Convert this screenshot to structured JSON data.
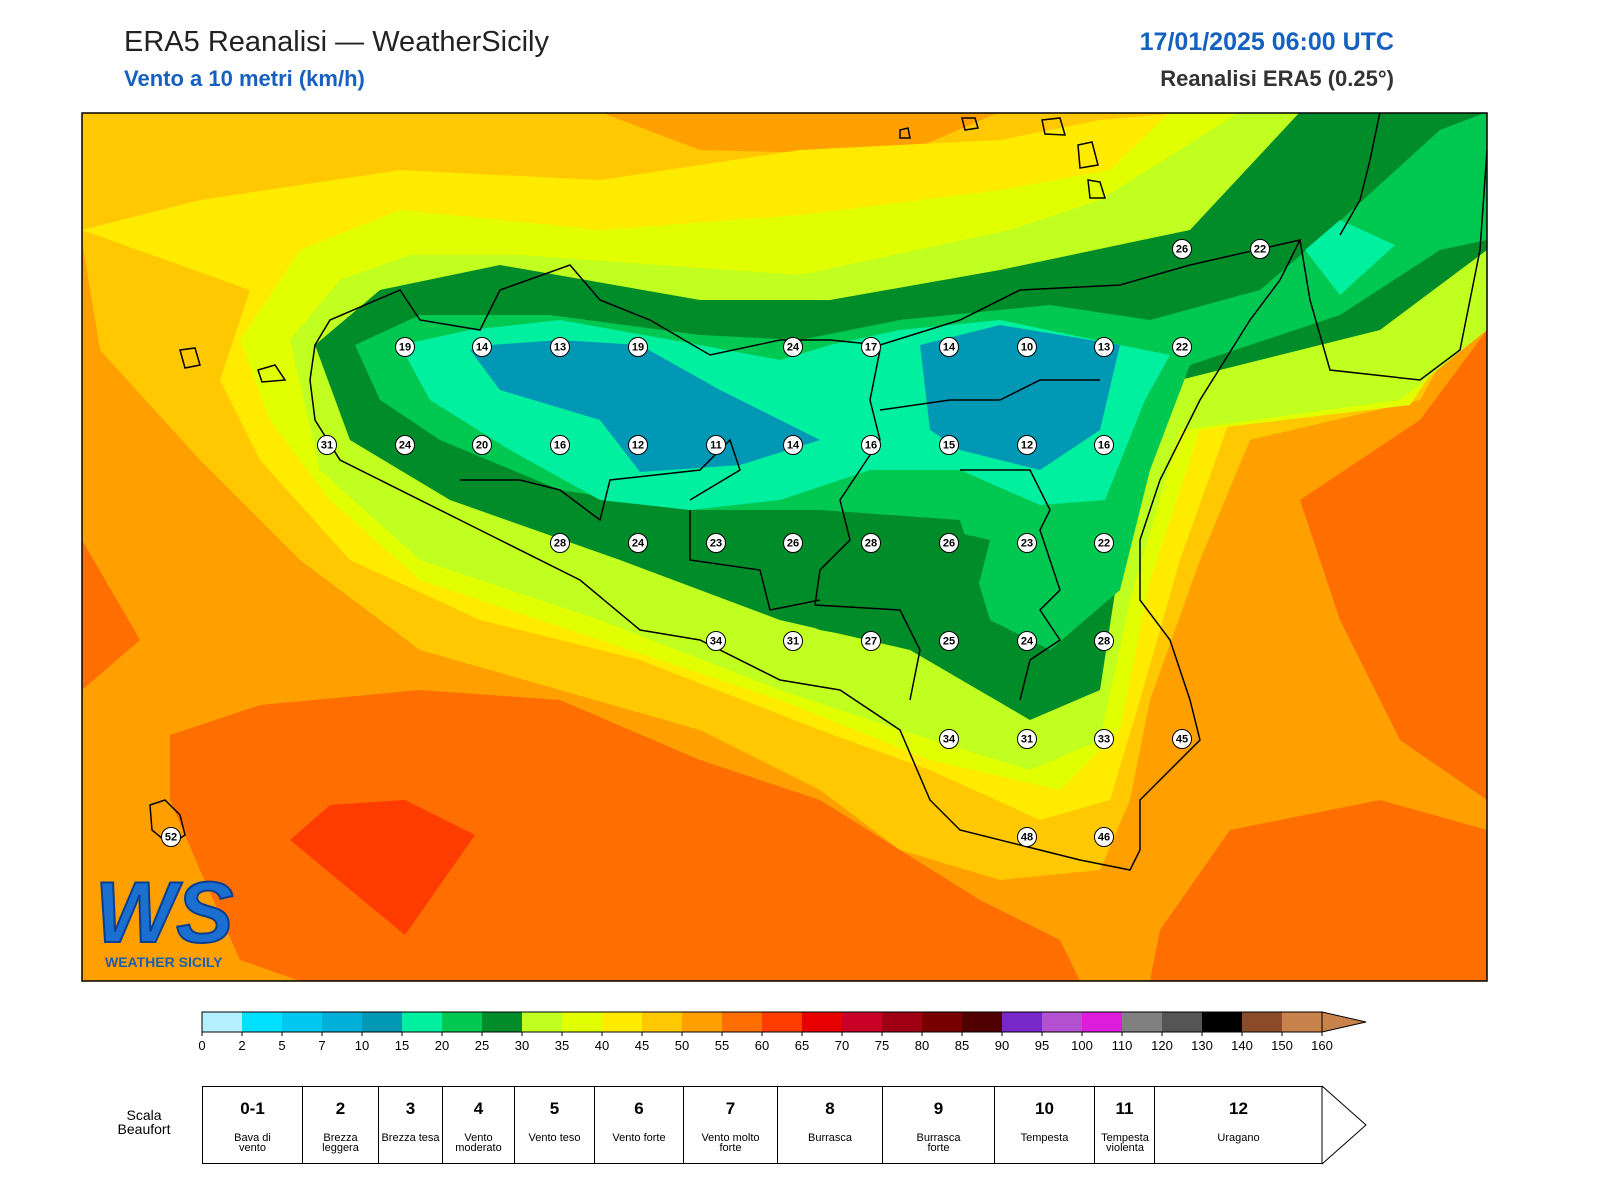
{
  "header": {
    "title": "ERA5 Reanalisi — WeatherSicily",
    "subtitle": "Vento a 10 metri (km/h)",
    "datetime": "17/01/2025 06:00 UTC",
    "source": "Reanalisi ERA5 (0.25°)"
  },
  "stations": [
    26,
    22,
    19,
    14,
    13,
    19,
    24,
    17,
    14,
    10,
    13,
    22,
    31,
    24,
    20,
    16,
    12,
    11,
    14,
    16,
    15,
    12,
    16,
    28,
    24,
    23,
    26,
    28,
    26,
    23,
    22,
    34,
    31,
    27,
    25,
    24,
    28,
    34,
    31,
    33,
    45,
    52,
    48,
    46
  ],
  "logo": {
    "mark": "WS",
    "name": "WEATHER SICILY"
  },
  "colorbar": {
    "ticks": [
      0,
      2,
      5,
      7,
      10,
      15,
      20,
      25,
      30,
      35,
      40,
      45,
      50,
      55,
      60,
      65,
      70,
      75,
      80,
      85,
      90,
      95,
      100,
      110,
      120,
      130,
      140,
      150,
      160
    ],
    "colors": [
      "#b4f0ff",
      "#00e1ff",
      "#00c8f0",
      "#00b0d8",
      "#0098b4",
      "#00f0a0",
      "#00c850",
      "#008c28",
      "#c0ff20",
      "#e1ff00",
      "#ffeb00",
      "#ffc800",
      "#ffa000",
      "#ff6e00",
      "#ff3c00",
      "#e60000",
      "#c80028",
      "#a00014",
      "#780000",
      "#500000",
      "#7828c8",
      "#b450d2",
      "#dc1edc",
      "#808080",
      "#555555",
      "#000000",
      "#8c4b28",
      "#c8824b"
    ],
    "extend_color": "#c8824b"
  },
  "beaufort": {
    "label": "Scala Beaufort",
    "forces": [
      {
        "number": "0-1",
        "name": "Bava di vento"
      },
      {
        "number": "2",
        "name": "Brezza leggera"
      },
      {
        "number": "3",
        "name": "Brezza tesa"
      },
      {
        "number": "4",
        "name": "Vento moderato"
      },
      {
        "number": "5",
        "name": "Vento teso"
      },
      {
        "number": "6",
        "name": "Vento forte"
      },
      {
        "number": "7",
        "name": "Vento molto forte"
      },
      {
        "number": "8",
        "name": "Burrasca"
      },
      {
        "number": "9",
        "name": "Burrasca forte"
      },
      {
        "number": "10",
        "name": "Tempesta"
      },
      {
        "number": "11",
        "name": "Tempesta violenta"
      },
      {
        "number": "12",
        "name": "Uragano"
      }
    ]
  }
}
